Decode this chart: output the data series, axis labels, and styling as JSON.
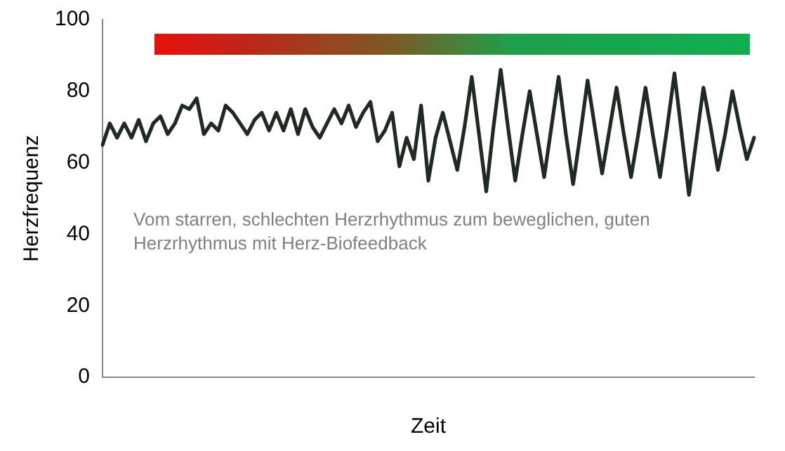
{
  "chart_data": {
    "type": "line",
    "xlabel": "Zeit",
    "ylabel": "Herzfrequenz",
    "categories": [
      null,
      null,
      null,
      null,
      null,
      null,
      null,
      null,
      null,
      null,
      null,
      null,
      null,
      null,
      null,
      null,
      null,
      null,
      null,
      null,
      null,
      null,
      null,
      null,
      null,
      null,
      null,
      null,
      null,
      null,
      null,
      null,
      null,
      null,
      null,
      null,
      null,
      null,
      null,
      null,
      null,
      null,
      null,
      null,
      null,
      null,
      null,
      null,
      null,
      null,
      null,
      null,
      null,
      null,
      null,
      null,
      null,
      null,
      null,
      null,
      null,
      null,
      null,
      null,
      null,
      null,
      null,
      null,
      null,
      null,
      null,
      null,
      null,
      null,
      null,
      null,
      null,
      null,
      null,
      null,
      null,
      null,
      null,
      null,
      null,
      null,
      null,
      null,
      null,
      null,
      null
    ],
    "series": [
      {
        "color": "#1f2a22",
        "values": [
          65,
          71,
          67,
          71,
          67,
          72,
          66,
          71,
          73,
          68,
          71,
          76,
          75,
          78,
          68,
          71,
          69,
          76,
          74,
          71,
          68,
          72,
          74,
          69,
          74,
          69,
          75,
          68,
          75,
          70,
          67,
          71,
          75,
          71,
          76,
          70,
          74,
          77,
          66,
          69,
          74,
          59,
          67,
          61,
          76,
          55,
          67,
          74,
          66,
          58,
          70,
          84,
          68,
          52,
          70,
          86,
          70,
          55,
          68,
          80,
          68,
          56,
          70,
          84,
          68,
          54,
          68,
          83,
          70,
          57,
          69,
          81,
          68,
          56,
          68,
          81,
          68,
          56,
          70,
          85,
          68,
          51,
          66,
          81,
          70,
          58,
          68,
          80,
          70,
          61,
          67
        ]
      }
    ],
    "ylim": [
      0,
      100
    ],
    "yticks": [
      0,
      20,
      40,
      60,
      80,
      100
    ],
    "grid": false,
    "legend": false,
    "marker": "none",
    "line_style": "solid",
    "annotations": [
      "Vom starren, schlechten Herzrhythmus zum beweglichen, guten Herzrhythmus mit Herz-Biofeedback"
    ]
  }
}
